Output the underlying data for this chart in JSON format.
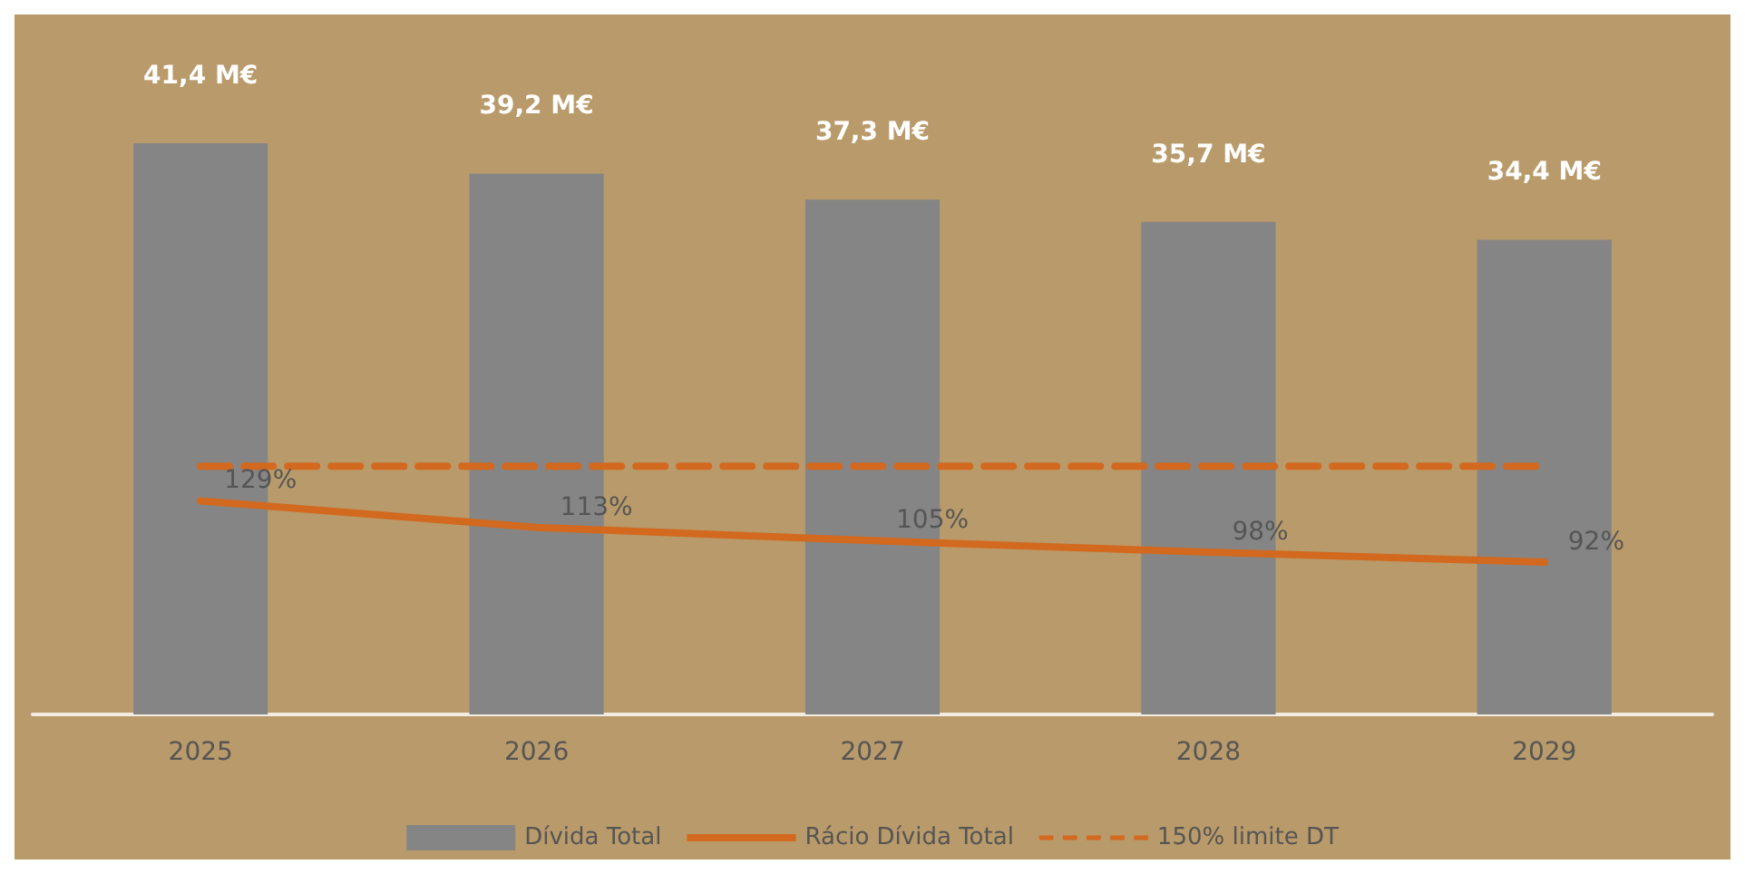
{
  "chart_data": {
    "type": "bar",
    "categories": [
      "2025",
      "2026",
      "2027",
      "2028",
      "2029"
    ],
    "series": [
      {
        "name": "Dívida Total",
        "color": "#858585",
        "values": [
          41.4,
          39.2,
          37.3,
          35.7,
          34.4
        ],
        "value_labels": [
          "41,4 M€",
          "39,2 M€",
          "37,3 M€",
          "35,7 M€",
          "34,4 M€"
        ]
      },
      {
        "name": "Rácio Dívida Total",
        "type": "line",
        "axis": "y2",
        "color": "#d2691e",
        "values": [
          129,
          113,
          105,
          98,
          92
        ],
        "value_labels": [
          "129%",
          "113%",
          "105%",
          "98%",
          "92%"
        ]
      },
      {
        "name": "150% limite DT",
        "type": "line",
        "axis": "y2",
        "color": "#d2691e",
        "line_style": "dashed",
        "values": [
          150,
          150,
          150,
          150,
          150
        ]
      }
    ],
    "tick_labels": "x",
    "legend": "bottom",
    "marker": "none"
  }
}
